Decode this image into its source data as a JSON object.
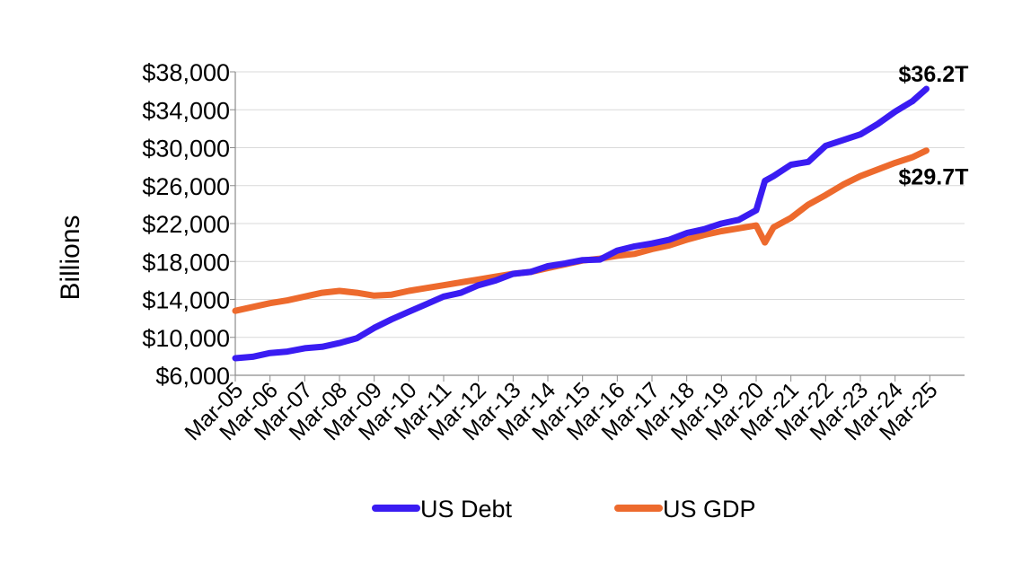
{
  "chart_data": {
    "type": "line",
    "title": "",
    "xlabel": "",
    "ylabel": "Billions",
    "ylim": [
      6000,
      38000
    ],
    "yticks": [
      6000,
      10000,
      14000,
      18000,
      22000,
      26000,
      30000,
      34000,
      38000
    ],
    "ytick_labels": [
      "$6,000",
      "$10,000",
      "$14,000",
      "$18,000",
      "$22,000",
      "$26,000",
      "$30,000",
      "$34,000",
      "$38,000"
    ],
    "xlim": [
      2005.0,
      2026.0
    ],
    "xticks": [
      2005,
      2006,
      2007,
      2008,
      2009,
      2010,
      2011,
      2012,
      2013,
      2014,
      2015,
      2016,
      2017,
      2018,
      2019,
      2020,
      2021,
      2022,
      2023,
      2024,
      2025
    ],
    "xtick_labels": [
      "Mar-05",
      "Mar-06",
      "Mar-07",
      "Mar-08",
      "Mar-09",
      "Mar-10",
      "Mar-11",
      "Mar-12",
      "Mar-13",
      "Mar-14",
      "Mar-15",
      "Mar-16",
      "Mar-17",
      "Mar-18",
      "Mar-19",
      "Mar-20",
      "Mar-21",
      "Mar-22",
      "Mar-23",
      "Mar-24",
      "Mar-25"
    ],
    "grid": "horizontal",
    "legend_position": "bottom",
    "series": [
      {
        "name": "US Debt",
        "color": "#3a1cf2",
        "x": [
          2005.0,
          2005.5,
          2006.0,
          2006.5,
          2007.0,
          2007.5,
          2008.0,
          2008.5,
          2009.0,
          2009.5,
          2010.0,
          2010.5,
          2011.0,
          2011.5,
          2012.0,
          2012.5,
          2013.0,
          2013.5,
          2014.0,
          2014.5,
          2015.0,
          2015.5,
          2016.0,
          2016.5,
          2017.0,
          2017.5,
          2018.0,
          2018.5,
          2019.0,
          2019.5,
          2020.0,
          2020.25,
          2020.5,
          2021.0,
          2021.5,
          2022.0,
          2022.5,
          2023.0,
          2023.5,
          2024.0,
          2024.5,
          2024.9
        ],
        "y": [
          7800,
          7950,
          8350,
          8500,
          8850,
          9000,
          9400,
          9900,
          11000,
          11900,
          12700,
          13500,
          14300,
          14700,
          15500,
          16000,
          16700,
          16900,
          17500,
          17800,
          18150,
          18200,
          19150,
          19600,
          19900,
          20300,
          21000,
          21400,
          22000,
          22400,
          23400,
          26500,
          27000,
          28200,
          28500,
          30200,
          30800,
          31400,
          32500,
          33800,
          34900,
          36200
        ]
      },
      {
        "name": "US GDP",
        "color": "#ed6a2d",
        "x": [
          2005.0,
          2005.5,
          2006.0,
          2006.5,
          2007.0,
          2007.5,
          2008.0,
          2008.5,
          2009.0,
          2009.5,
          2010.0,
          2010.5,
          2011.0,
          2011.5,
          2012.0,
          2012.5,
          2013.0,
          2013.5,
          2014.0,
          2014.5,
          2015.0,
          2015.5,
          2016.0,
          2016.5,
          2017.0,
          2017.5,
          2018.0,
          2018.5,
          2019.0,
          2019.5,
          2020.0,
          2020.25,
          2020.5,
          2021.0,
          2021.5,
          2022.0,
          2022.5,
          2023.0,
          2023.5,
          2024.0,
          2024.5,
          2024.9
        ],
        "y": [
          12800,
          13200,
          13600,
          13900,
          14300,
          14700,
          14900,
          14700,
          14400,
          14500,
          14900,
          15200,
          15500,
          15800,
          16100,
          16400,
          16700,
          16900,
          17300,
          17700,
          18100,
          18300,
          18600,
          18800,
          19300,
          19700,
          20300,
          20800,
          21200,
          21500,
          21800,
          20000,
          21600,
          22600,
          24000,
          25000,
          26100,
          27000,
          27700,
          28400,
          29000,
          29700
        ]
      }
    ],
    "annotations": [
      {
        "text": "$36.2T",
        "series": "US Debt"
      },
      {
        "text": "$29.7T",
        "series": "US GDP"
      }
    ]
  }
}
